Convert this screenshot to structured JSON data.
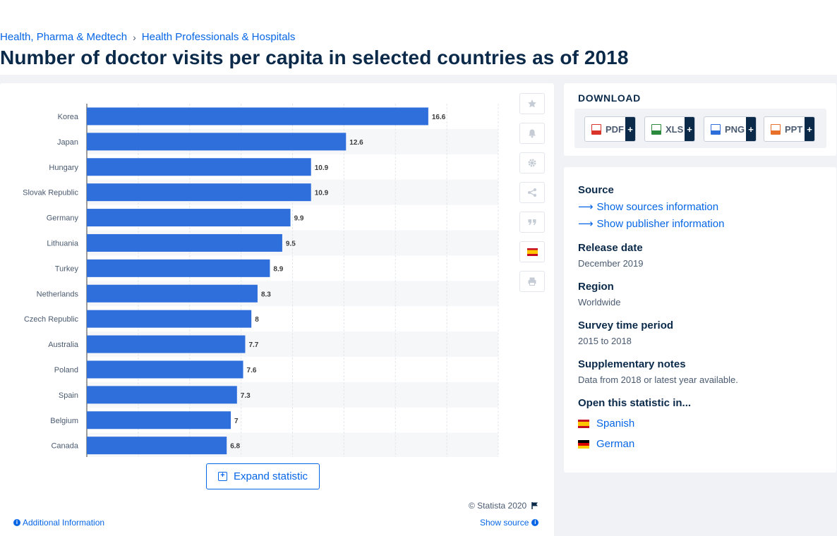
{
  "breadcrumb": [
    "Health, Pharma & Medtech",
    "Health Professionals & Hospitals"
  ],
  "page_title": "Number of doctor visits per capita in selected countries as of 2018",
  "chart_data": {
    "type": "bar",
    "orientation": "horizontal",
    "categories": [
      "Korea",
      "Japan",
      "Hungary",
      "Slovak Republic",
      "Germany",
      "Lithuania",
      "Turkey",
      "Netherlands",
      "Czech Republic",
      "Australia",
      "Poland",
      "Spain",
      "Belgium",
      "Canada"
    ],
    "values": [
      16.6,
      12.6,
      10.9,
      10.9,
      9.9,
      9.5,
      8.9,
      8.3,
      8,
      7.7,
      7.6,
      7.3,
      7,
      6.8
    ],
    "value_labels": [
      "16.6",
      "12.6",
      "10.9",
      "10.9",
      "9.9",
      "9.5",
      "8.9",
      "8.3",
      "8",
      "7.7",
      "7.6",
      "7.3",
      "7",
      "6.8"
    ],
    "xlim": [
      0,
      20
    ],
    "grid": true,
    "bar_color": "#2f6fdc"
  },
  "chart_footer": {
    "expand_label": "Expand statistic",
    "copyright": "© Statista 2020",
    "additional_info": "Additional Information",
    "show_source": "Show source"
  },
  "tool_icons": [
    "star-icon",
    "bell-icon",
    "gear-icon",
    "share-icon",
    "quote-icon",
    "spanish-flag-icon",
    "print-icon"
  ],
  "download": {
    "title": "DOWNLOAD",
    "buttons": [
      {
        "label": "PDF",
        "color": "#d9352b"
      },
      {
        "label": "XLS",
        "color": "#2b8a3e"
      },
      {
        "label": "PNG",
        "color": "#2f6fdc"
      },
      {
        "label": "PPT",
        "color": "#e8702a"
      }
    ]
  },
  "info": {
    "source_heading": "Source",
    "show_sources": "Show sources information",
    "show_publisher": "Show publisher information",
    "release_heading": "Release date",
    "release_value": "December 2019",
    "region_heading": "Region",
    "region_value": "Worldwide",
    "survey_heading": "Survey time period",
    "survey_value": "2015 to 2018",
    "notes_heading": "Supplementary notes",
    "notes_value": "Data from 2018 or latest year available.",
    "open_heading": "Open this statistic in...",
    "lang_spanish": "Spanish",
    "lang_german": "German"
  },
  "colors": {
    "accent": "#0666e5",
    "navy": "#0b2a4a",
    "bar": "#2f6fdc"
  }
}
